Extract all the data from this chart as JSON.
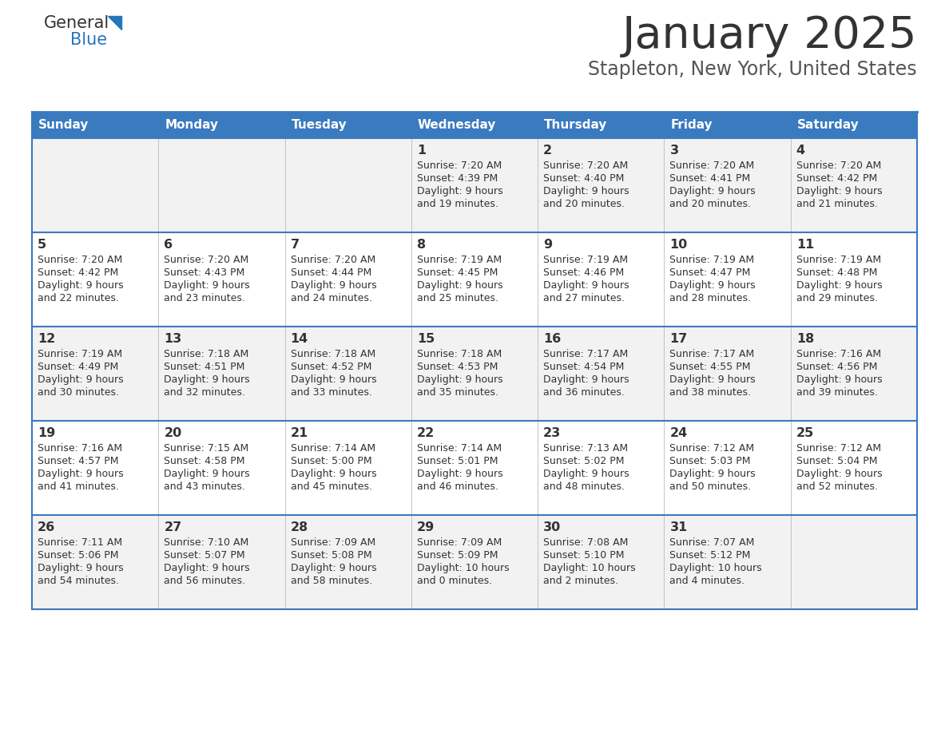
{
  "title": "January 2025",
  "subtitle": "Stapleton, New York, United States",
  "days_of_week": [
    "Sunday",
    "Monday",
    "Tuesday",
    "Wednesday",
    "Thursday",
    "Friday",
    "Saturday"
  ],
  "header_bg": "#3a7abf",
  "header_text_color": "#ffffff",
  "row_bg_odd": "#f2f2f2",
  "row_bg_even": "#ffffff",
  "cell_border_color": "#3a7abf",
  "day_number_color": "#333333",
  "info_text_color": "#333333",
  "title_color": "#333333",
  "subtitle_color": "#555555",
  "logo_general_color": "#333333",
  "logo_blue_color": "#2575bb",
  "calendar_data": [
    [
      null,
      null,
      null,
      {
        "day": 1,
        "sunrise": "7:20 AM",
        "sunset": "4:39 PM",
        "daylight": "9 hours and 19 minutes."
      },
      {
        "day": 2,
        "sunrise": "7:20 AM",
        "sunset": "4:40 PM",
        "daylight": "9 hours and 20 minutes."
      },
      {
        "day": 3,
        "sunrise": "7:20 AM",
        "sunset": "4:41 PM",
        "daylight": "9 hours and 20 minutes."
      },
      {
        "day": 4,
        "sunrise": "7:20 AM",
        "sunset": "4:42 PM",
        "daylight": "9 hours and 21 minutes."
      }
    ],
    [
      {
        "day": 5,
        "sunrise": "7:20 AM",
        "sunset": "4:42 PM",
        "daylight": "9 hours and 22 minutes."
      },
      {
        "day": 6,
        "sunrise": "7:20 AM",
        "sunset": "4:43 PM",
        "daylight": "9 hours and 23 minutes."
      },
      {
        "day": 7,
        "sunrise": "7:20 AM",
        "sunset": "4:44 PM",
        "daylight": "9 hours and 24 minutes."
      },
      {
        "day": 8,
        "sunrise": "7:19 AM",
        "sunset": "4:45 PM",
        "daylight": "9 hours and 25 minutes."
      },
      {
        "day": 9,
        "sunrise": "7:19 AM",
        "sunset": "4:46 PM",
        "daylight": "9 hours and 27 minutes."
      },
      {
        "day": 10,
        "sunrise": "7:19 AM",
        "sunset": "4:47 PM",
        "daylight": "9 hours and 28 minutes."
      },
      {
        "day": 11,
        "sunrise": "7:19 AM",
        "sunset": "4:48 PM",
        "daylight": "9 hours and 29 minutes."
      }
    ],
    [
      {
        "day": 12,
        "sunrise": "7:19 AM",
        "sunset": "4:49 PM",
        "daylight": "9 hours and 30 minutes."
      },
      {
        "day": 13,
        "sunrise": "7:18 AM",
        "sunset": "4:51 PM",
        "daylight": "9 hours and 32 minutes."
      },
      {
        "day": 14,
        "sunrise": "7:18 AM",
        "sunset": "4:52 PM",
        "daylight": "9 hours and 33 minutes."
      },
      {
        "day": 15,
        "sunrise": "7:18 AM",
        "sunset": "4:53 PM",
        "daylight": "9 hours and 35 minutes."
      },
      {
        "day": 16,
        "sunrise": "7:17 AM",
        "sunset": "4:54 PM",
        "daylight": "9 hours and 36 minutes."
      },
      {
        "day": 17,
        "sunrise": "7:17 AM",
        "sunset": "4:55 PM",
        "daylight": "9 hours and 38 minutes."
      },
      {
        "day": 18,
        "sunrise": "7:16 AM",
        "sunset": "4:56 PM",
        "daylight": "9 hours and 39 minutes."
      }
    ],
    [
      {
        "day": 19,
        "sunrise": "7:16 AM",
        "sunset": "4:57 PM",
        "daylight": "9 hours and 41 minutes."
      },
      {
        "day": 20,
        "sunrise": "7:15 AM",
        "sunset": "4:58 PM",
        "daylight": "9 hours and 43 minutes."
      },
      {
        "day": 21,
        "sunrise": "7:14 AM",
        "sunset": "5:00 PM",
        "daylight": "9 hours and 45 minutes."
      },
      {
        "day": 22,
        "sunrise": "7:14 AM",
        "sunset": "5:01 PM",
        "daylight": "9 hours and 46 minutes."
      },
      {
        "day": 23,
        "sunrise": "7:13 AM",
        "sunset": "5:02 PM",
        "daylight": "9 hours and 48 minutes."
      },
      {
        "day": 24,
        "sunrise": "7:12 AM",
        "sunset": "5:03 PM",
        "daylight": "9 hours and 50 minutes."
      },
      {
        "day": 25,
        "sunrise": "7:12 AM",
        "sunset": "5:04 PM",
        "daylight": "9 hours and 52 minutes."
      }
    ],
    [
      {
        "day": 26,
        "sunrise": "7:11 AM",
        "sunset": "5:06 PM",
        "daylight": "9 hours and 54 minutes."
      },
      {
        "day": 27,
        "sunrise": "7:10 AM",
        "sunset": "5:07 PM",
        "daylight": "9 hours and 56 minutes."
      },
      {
        "day": 28,
        "sunrise": "7:09 AM",
        "sunset": "5:08 PM",
        "daylight": "9 hours and 58 minutes."
      },
      {
        "day": 29,
        "sunrise": "7:09 AM",
        "sunset": "5:09 PM",
        "daylight": "10 hours and 0 minutes."
      },
      {
        "day": 30,
        "sunrise": "7:08 AM",
        "sunset": "5:10 PM",
        "daylight": "10 hours and 2 minutes."
      },
      {
        "day": 31,
        "sunrise": "7:07 AM",
        "sunset": "5:12 PM",
        "daylight": "10 hours and 4 minutes."
      },
      null
    ]
  ]
}
